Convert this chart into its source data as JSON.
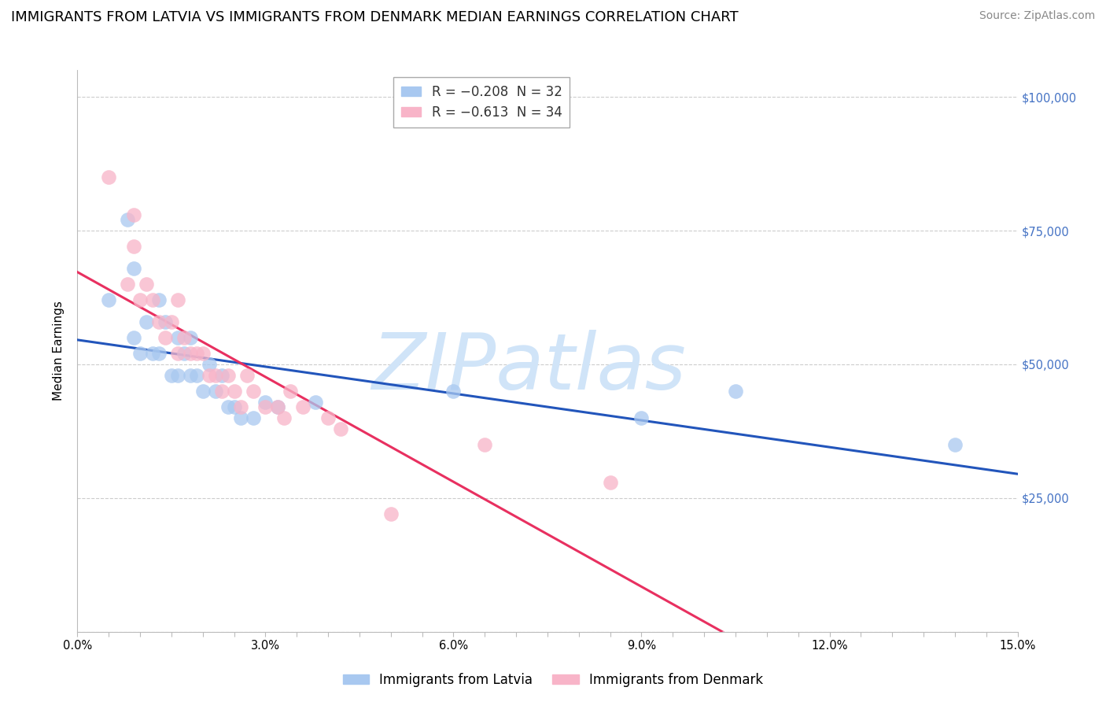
{
  "title": "IMMIGRANTS FROM LATVIA VS IMMIGRANTS FROM DENMARK MEDIAN EARNINGS CORRELATION CHART",
  "source": "Source: ZipAtlas.com",
  "xlabel": "",
  "ylabel": "Median Earnings",
  "xlim": [
    0.0,
    0.15
  ],
  "ylim": [
    0,
    105000
  ],
  "yticks": [
    0,
    25000,
    50000,
    75000,
    100000
  ],
  "ytick_labels": [
    "",
    "$25,000",
    "$50,000",
    "$75,000",
    "$100,000"
  ],
  "xtick_step": 0.005,
  "xtick_label_positions": [
    0.0,
    0.03,
    0.06,
    0.09,
    0.12,
    0.15
  ],
  "xtick_label_strings": [
    "0.0%",
    "3.0%",
    "6.0%",
    "9.0%",
    "12.0%",
    "15.0%"
  ],
  "legend_latvia": "R = −0.208  N = 32",
  "legend_denmark": "R = −0.613  N = 34",
  "color_latvia": "#A8C8F0",
  "color_denmark": "#F8B4C8",
  "color_line_latvia": "#2255BB",
  "color_line_denmark": "#E83060",
  "color_line_denmark_dash": "#F0A0C0",
  "color_ytick_labels": "#4472C4",
  "watermark": "ZIPatlas",
  "watermark_color": "#D0E4F8",
  "latvia_x": [
    0.005,
    0.008,
    0.009,
    0.009,
    0.01,
    0.011,
    0.012,
    0.013,
    0.013,
    0.014,
    0.015,
    0.016,
    0.016,
    0.017,
    0.018,
    0.018,
    0.019,
    0.02,
    0.021,
    0.022,
    0.023,
    0.024,
    0.025,
    0.026,
    0.028,
    0.03,
    0.032,
    0.038,
    0.06,
    0.09,
    0.105,
    0.14
  ],
  "latvia_y": [
    62000,
    77000,
    55000,
    68000,
    52000,
    58000,
    52000,
    52000,
    62000,
    58000,
    48000,
    48000,
    55000,
    52000,
    48000,
    55000,
    48000,
    45000,
    50000,
    45000,
    48000,
    42000,
    42000,
    40000,
    40000,
    43000,
    42000,
    43000,
    45000,
    40000,
    45000,
    35000
  ],
  "denmark_x": [
    0.005,
    0.008,
    0.009,
    0.009,
    0.01,
    0.011,
    0.012,
    0.013,
    0.014,
    0.015,
    0.016,
    0.016,
    0.017,
    0.018,
    0.019,
    0.02,
    0.021,
    0.022,
    0.023,
    0.024,
    0.025,
    0.026,
    0.027,
    0.028,
    0.03,
    0.032,
    0.033,
    0.034,
    0.036,
    0.04,
    0.042,
    0.05,
    0.065,
    0.085
  ],
  "denmark_y": [
    85000,
    65000,
    78000,
    72000,
    62000,
    65000,
    62000,
    58000,
    55000,
    58000,
    52000,
    62000,
    55000,
    52000,
    52000,
    52000,
    48000,
    48000,
    45000,
    48000,
    45000,
    42000,
    48000,
    45000,
    42000,
    42000,
    40000,
    45000,
    42000,
    40000,
    38000,
    22000,
    35000,
    28000
  ],
  "title_fontsize": 13,
  "source_fontsize": 10,
  "label_fontsize": 11,
  "tick_fontsize": 10.5,
  "legend_fontsize": 12,
  "watermark_fontsize": 72,
  "marker_size": 180,
  "line_width": 2.2,
  "grid_color": "#CCCCCC",
  "grid_style": "--",
  "grid_lw": 0.8,
  "spine_color": "#BBBBBB"
}
